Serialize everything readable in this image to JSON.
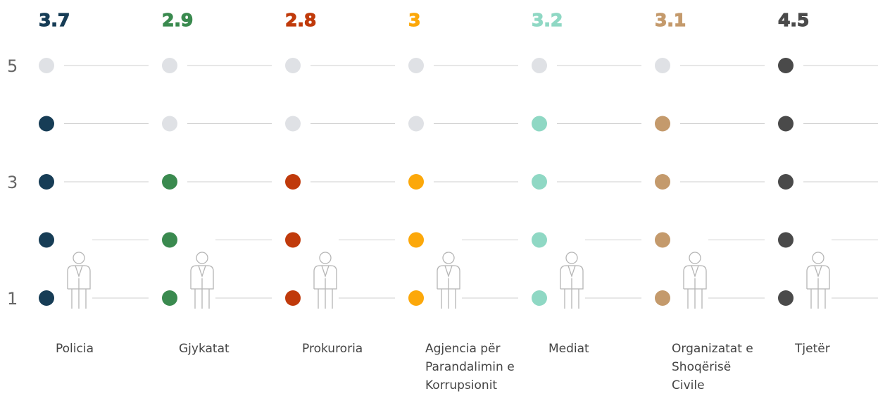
{
  "chart_data": {
    "type": "dot-rating",
    "categories": [
      "Policia",
      "Gjykatat",
      "Prokuroria",
      "Agjencia për Parandalimin e Korrupsionit",
      "Mediat",
      "Organizatat e Shoqërisë Civile",
      "Tjetër"
    ],
    "values": [
      3.7,
      2.9,
      2.8,
      3,
      3.2,
      3.1,
      4.5
    ],
    "colors": [
      "#173d56",
      "#3a8a4f",
      "#c03a0b",
      "#fca80a",
      "#8fd8c4",
      "#c49a6c",
      "#4a4a4a"
    ],
    "empty_color": "#dfe1e5",
    "ylim": [
      1,
      5
    ],
    "yticks": [
      1,
      3,
      5
    ]
  }
}
